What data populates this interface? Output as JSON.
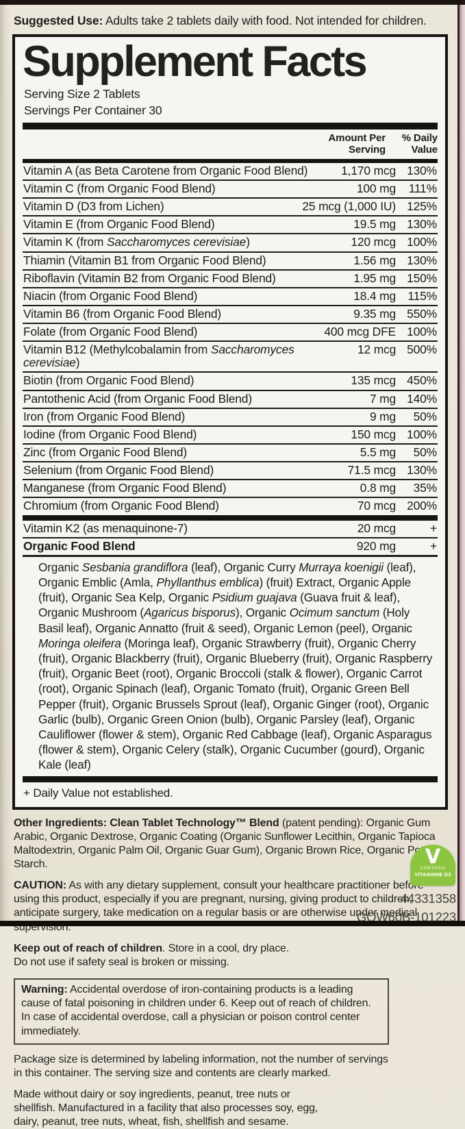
{
  "label": {
    "suggested_use": {
      "lead": "Suggested Use:",
      "rest": " Adults take 2 tablets daily with food. Not intended for children."
    },
    "panel": {
      "title": "Supplement Facts",
      "serving_size": "Serving Size 2 Tablets",
      "servings_per_container": "Servings Per Container 30",
      "col_amount": "Amount Per\nServing",
      "col_daily_value": "% Daily\nValue",
      "rows": [
        {
          "label": "Vitamin A (as Beta Carotene from Organic Food Blend)",
          "amount": "1,170 mcg",
          "dv": "130%"
        },
        {
          "label": "Vitamin C (from Organic Food Blend)",
          "amount": "100 mg",
          "dv": "111%"
        },
        {
          "label": "Vitamin D (D3 from Lichen)",
          "amount": "25 mcg (1,000 IU)",
          "dv": "125%"
        },
        {
          "label": "Vitamin E (from Organic Food Blend)",
          "amount": "19.5 mg",
          "dv": "130%"
        },
        {
          "label": "Vitamin K (from *Saccharomyces cerevisiae*)",
          "amount": "120 mcg",
          "dv": "100%"
        },
        {
          "label": "Thiamin (Vitamin B1 from Organic Food Blend)",
          "amount": "1.56 mg",
          "dv": "130%"
        },
        {
          "label": "Riboflavin (Vitamin B2 from Organic Food Blend)",
          "amount": "1.95 mg",
          "dv": "150%"
        },
        {
          "label": "Niacin (from Organic Food Blend)",
          "amount": "18.4 mg",
          "dv": "115%"
        },
        {
          "label": "Vitamin B6 (from Organic Food Blend)",
          "amount": "9.35 mg",
          "dv": "550%"
        },
        {
          "label": "Folate (from Organic Food Blend)",
          "amount": "400 mcg DFE",
          "dv": "100%"
        },
        {
          "label": "Vitamin B12 (Methylcobalamin from *Saccharomyces cerevisiae*)",
          "amount": "12 mcg",
          "dv": "500%"
        },
        {
          "label": "Biotin (from Organic Food Blend)",
          "amount": "135 mcg",
          "dv": "450%"
        },
        {
          "label": "Pantothenic Acid (from Organic Food Blend)",
          "amount": "7 mg",
          "dv": "140%"
        },
        {
          "label": "Iron (from Organic Food Blend)",
          "amount": "9 mg",
          "dv": "50%"
        },
        {
          "label": "Iodine (from Organic Food Blend)",
          "amount": "150 mcg",
          "dv": "100%"
        },
        {
          "label": "Zinc (from Organic Food Blend)",
          "amount": "5.5 mg",
          "dv": "50%"
        },
        {
          "label": "Selenium (from Organic Food Blend)",
          "amount": "71.5 mcg",
          "dv": "130%"
        },
        {
          "label": "Manganese (from Organic Food Blend)",
          "amount": "0.8 mg",
          "dv": "35%"
        },
        {
          "label": "Chromium (from Organic Food Blend)",
          "amount": "70 mcg",
          "dv": "200%"
        }
      ],
      "extra_rows": [
        {
          "label": "Vitamin K2 (as menaquinone-7)",
          "amount": "20 mcg",
          "dv": "+",
          "bold": false
        },
        {
          "label": "Organic Food Blend",
          "amount": "920 mg",
          "dv": "+",
          "bold": true
        }
      ],
      "blend_ingredients": "Organic *Sesbania grandiflora* (leaf), Organic Curry *Murraya koenigii* (leaf), Organic Emblic (Amla, *Phyllanthus emblica*) (fruit) Extract, Organic Apple (fruit), Organic Sea Kelp, Organic *Psidium guajava* (Guava fruit & leaf), Organic Mushroom (*Agaricus bisporus*), Organic *Ocimum sanctum* (Holy Basil leaf), Organic Annatto (fruit & seed), Organic Lemon (peel), Organic *Moringa oleifera* (Moringa leaf), Organic Strawberry (fruit), Organic Cherry (fruit), Organic Blackberry (fruit), Organic Blueberry (fruit), Organic Raspberry (fruit), Organic Beet (root), Organic Broccoli (stalk & flower), Organic Carrot (root), Organic Spinach (leaf), Organic Tomato (fruit), Organic Green Bell Pepper (fruit), Organic Brussels Sprout (leaf), Organic Ginger (root), Organic Garlic (bulb), Organic Green Onion (bulb), Organic Parsley (leaf), Organic Cauliflower (flower & stem), Organic Red Cabbage (leaf), Organic Asparagus (flower & stem), Organic Celery (stalk), Organic Cucumber (gourd), Organic Kale (leaf)",
      "footnote": "+ Daily Value not established."
    },
    "other_ingredients": {
      "lead": "Other Ingredients: Clean Tablet Technology™ Blend",
      "rest": " (patent pending): Organic Gum Arabic, Organic Dextrose, Organic Coating (Organic Sunflower Lecithin, Organic Tapioca Maltodextrin, Organic Palm Oil, Organic Guar Gum), Organic Brown Rice, Organic Potato Starch."
    },
    "caution": {
      "lead": "CAUTION:",
      "rest": " As with any dietary supplement, consult your healthcare practitioner before using this product, especially if you are pregnant, nursing, giving product to children, anticipate surgery, take medication on a regular basis or are otherwise under medical supervision."
    },
    "keep_out": {
      "lead": "Keep out of reach of children",
      "rest": ". Store in a cool, dry place."
    },
    "safety_seal": "Do not use if safety seal is broken or missing.",
    "warning": {
      "lead": "Warning:",
      "rest": " Accidental overdose of iron-containing products is a leading cause of fatal poisoning in children under 6. Keep out of reach of children. In case of accidental overdose, call a physician or poison control center immediately."
    },
    "package_size": "Package size is determined by labeling information, not the number of servings in this container. The serving size and contents are clearly marked.",
    "made_without": "Made without dairy or soy ingredients, peanut, tree nuts or shellfish. Manufactured in a facility that also processes soy, egg, dairy, peanut, tree nuts, wheat, fish, shellfish and sesame.",
    "badge": {
      "v_mark": "V",
      "contains": "CONTAINS",
      "name": "VITASHINE D3"
    },
    "codes": {
      "line1": "44331358",
      "line2": "GOW60B-101223"
    },
    "colors": {
      "badge_green": "#8cc540",
      "paper_cream": "#eae5d8",
      "panel_bg": "#f7f5f1",
      "edge_pink": "#dec9cd",
      "ink_black": "#161412"
    }
  }
}
